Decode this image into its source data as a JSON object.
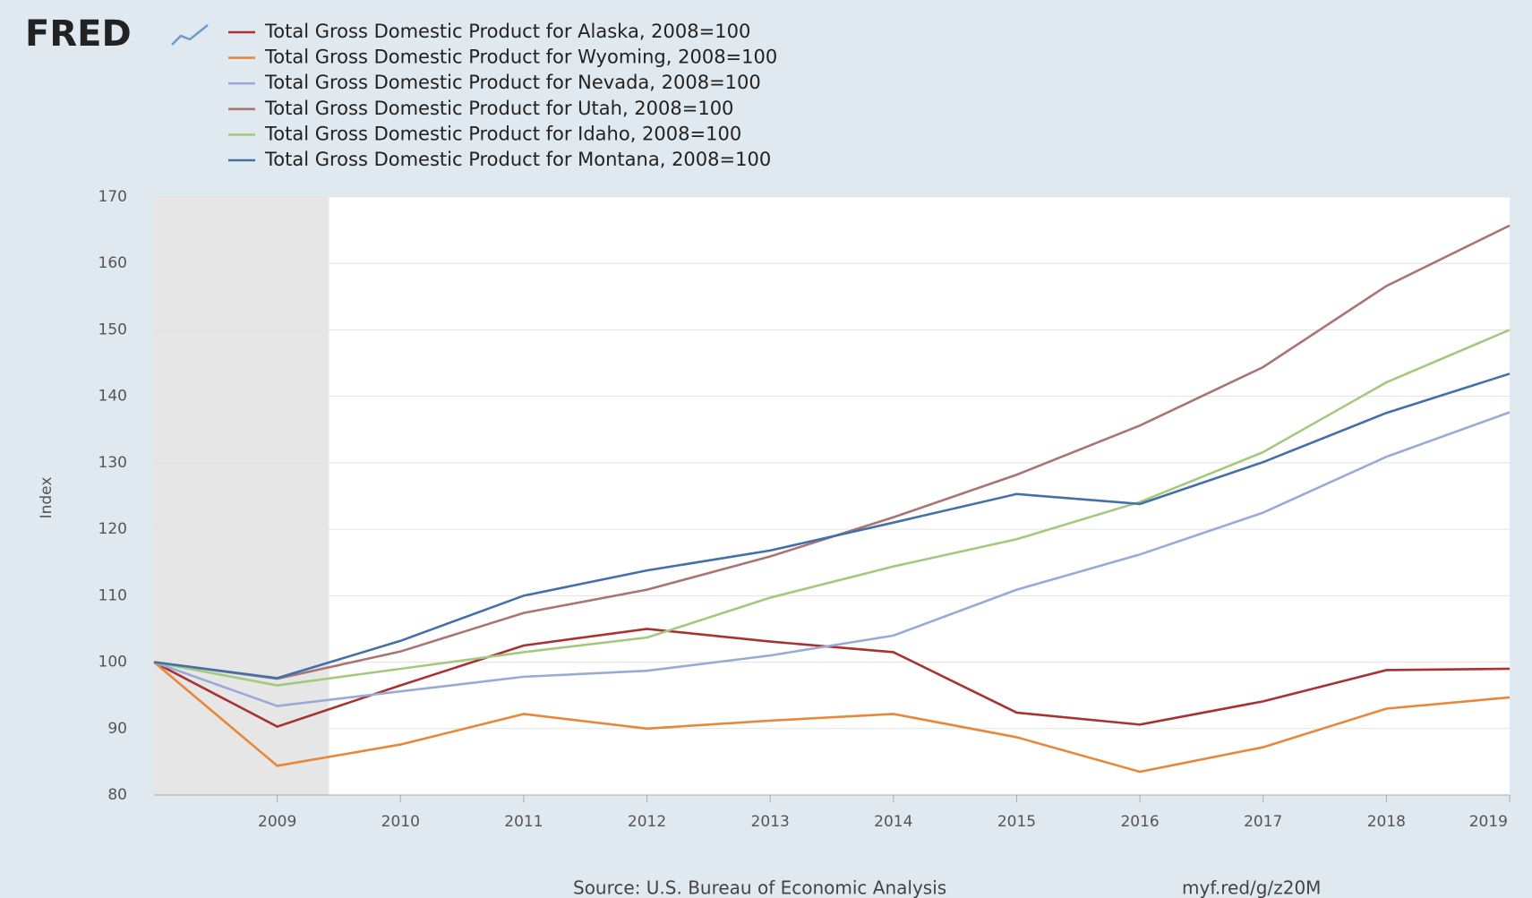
{
  "logo": "FRED",
  "chart_data": {
    "type": "line",
    "ylabel": "Index",
    "x": [
      2008,
      2009,
      2010,
      2011,
      2012,
      2013,
      2014,
      2015,
      2016,
      2017,
      2018,
      2019
    ],
    "xlim": [
      2008,
      2019
    ],
    "xticks": [
      2009,
      2010,
      2011,
      2012,
      2013,
      2014,
      2015,
      2016,
      2017,
      2018,
      2019
    ],
    "ylim": [
      80,
      170
    ],
    "yticks": [
      80,
      90,
      100,
      110,
      120,
      130,
      140,
      150,
      160,
      170
    ],
    "grid": true,
    "recession": [
      2008,
      2009.42
    ],
    "series": [
      {
        "name": "Total Gross Domestic Product for Alaska, 2008=100",
        "color": "#a83232",
        "values": [
          100,
          90.3,
          96.5,
          102.5,
          105,
          103.1,
          101.5,
          92.4,
          90.6,
          94.1,
          98.8,
          99
        ]
      },
      {
        "name": "Total Gross Domestic Product for Wyoming, 2008=100",
        "color": "#e8873a",
        "values": [
          100,
          84.4,
          87.6,
          92.2,
          90,
          91.2,
          92.2,
          88.7,
          83.5,
          87.2,
          93,
          94.7
        ]
      },
      {
        "name": "Total Gross Domestic Product for Nevada, 2008=100",
        "color": "#9aaad6",
        "values": [
          100,
          93.4,
          95.6,
          97.8,
          98.7,
          101,
          104,
          110.9,
          116.2,
          122.5,
          130.9,
          137.6
        ]
      },
      {
        "name": "Total Gross Domestic Product for Utah, 2008=100",
        "color": "#a87474",
        "values": [
          100,
          97.5,
          101.6,
          107.4,
          110.9,
          115.9,
          121.8,
          128.2,
          135.6,
          144.4,
          156.6,
          165.7
        ]
      },
      {
        "name": "Total Gross Domestic Product for Idaho, 2008=100",
        "color": "#a4c97e",
        "values": [
          100,
          96.5,
          99,
          101.5,
          103.7,
          109.7,
          114.4,
          118.5,
          124.1,
          131.6,
          142.1,
          150
        ]
      },
      {
        "name": "Total Gross Domestic Product for Montana, 2008=100",
        "color": "#4470a8",
        "values": [
          100,
          97.6,
          103.2,
          110,
          113.8,
          116.8,
          121,
          125.3,
          123.8,
          130.1,
          137.5,
          143.4
        ]
      }
    ],
    "source": "Source: U.S. Bureau of Economic Analysis",
    "url": "myf.red/g/z20M"
  }
}
